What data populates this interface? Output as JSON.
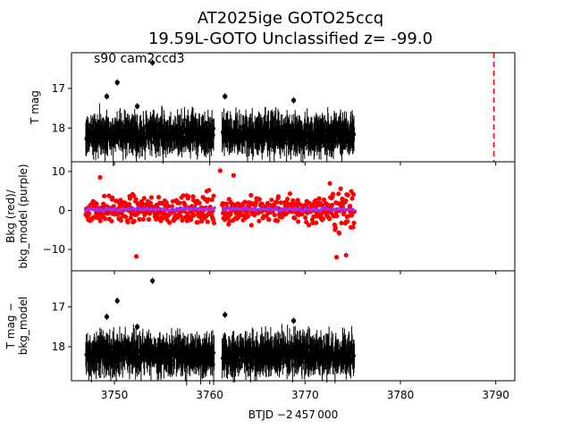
{
  "chart_data": {
    "type": "scatter",
    "title": [
      "AT2025ige  GOTO25ccq",
      "19.59L-GOTO Unclassified z= -99.0"
    ],
    "annotation": "s90 cam2ccd3",
    "xlabel": "BTJD −2 457 000",
    "xlim": [
      3745.5,
      3792.0
    ],
    "xticks": [
      "3750",
      "3760",
      "3770",
      "3780",
      "3790"
    ],
    "vline_x": 3789.8,
    "vline_color": "#ff0000",
    "gaps": [
      [
        3760.5,
        3761.3
      ]
    ],
    "data_span": [
      3747.0,
      3775.2
    ],
    "panels": [
      {
        "ylabel": [
          "T mag"
        ],
        "yticks": [
          "17",
          "18"
        ],
        "ylim": [
          18.85,
          16.1
        ],
        "inverted": true,
        "series": [
          {
            "color": "#000000",
            "center": 18.15,
            "scatter": 0.25,
            "errorbar": 0.35
          }
        ],
        "outliers": [
          {
            "x": 3750.3,
            "y": 16.85
          },
          {
            "x": 3749.2,
            "y": 17.2
          },
          {
            "x": 3754.0,
            "y": 16.35
          },
          {
            "x": 3761.6,
            "y": 17.2
          },
          {
            "x": 3768.8,
            "y": 17.3
          },
          {
            "x": 3752.4,
            "y": 17.45
          }
        ]
      },
      {
        "ylabel": [
          "Bkg (red)/",
          "bkg_model (purple)"
        ],
        "yticks": [
          "10",
          "0",
          "−10"
        ],
        "ylim": [
          -15.5,
          12.5
        ],
        "inverted": false,
        "series": [
          {
            "name": "Bkg",
            "color": "#ff0000",
            "center": 0.2,
            "scatter": 3.2
          },
          {
            "name": "bkg_model",
            "color": "#9b30ff",
            "center": 0.3,
            "scatter": 0.35
          }
        ],
        "outliers": [
          {
            "x": 3752.3,
            "y": -11.8
          },
          {
            "x": 3761.1,
            "y": 10.2
          },
          {
            "x": 3774.3,
            "y": -11.5
          },
          {
            "x": 3773.3,
            "y": -12.0
          },
          {
            "x": 3748.5,
            "y": 8.5
          },
          {
            "x": 3762.5,
            "y": 9.0
          }
        ]
      },
      {
        "ylabel": [
          "T mag −",
          "bkg_model"
        ],
        "yticks": [
          "17",
          "18"
        ],
        "ylim": [
          18.85,
          16.1
        ],
        "inverted": true,
        "series": [
          {
            "color": "#000000",
            "center": 18.2,
            "scatter": 0.25,
            "errorbar": 0.35
          }
        ],
        "outliers": [
          {
            "x": 3750.3,
            "y": 16.85
          },
          {
            "x": 3749.2,
            "y": 17.25
          },
          {
            "x": 3754.0,
            "y": 16.35
          },
          {
            "x": 3761.6,
            "y": 17.2
          },
          {
            "x": 3768.8,
            "y": 17.35
          },
          {
            "x": 3752.4,
            "y": 17.5
          }
        ]
      }
    ]
  }
}
